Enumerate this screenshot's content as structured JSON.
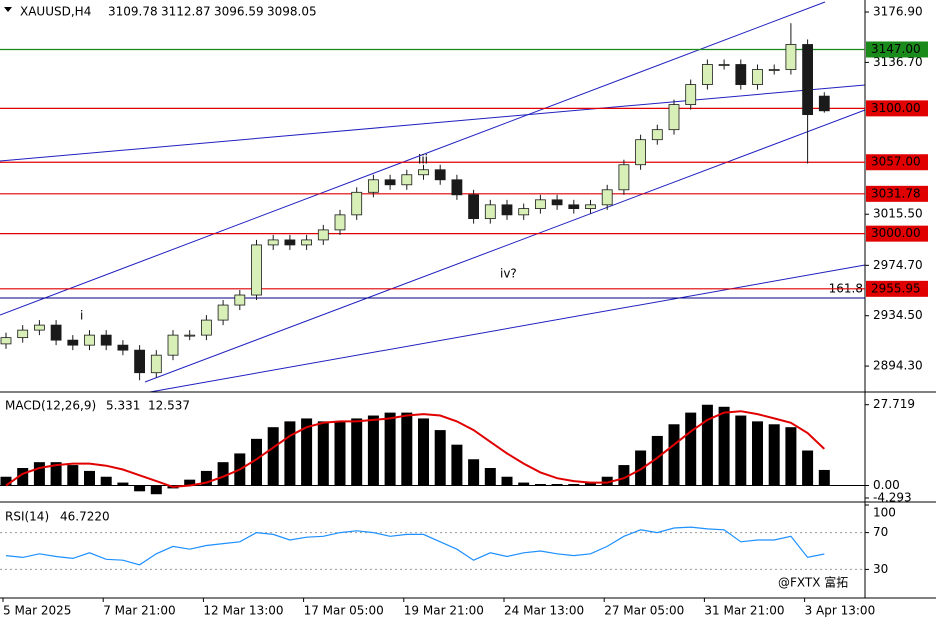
{
  "chart_data": [
    {
      "type": "candlestick",
      "title": "XAUUSD,H4",
      "header_values": [
        3109.78,
        3112.87,
        3096.59,
        3098.05
      ],
      "categories": [
        "5 Mar 2025",
        null,
        null,
        null,
        null,
        null,
        "7 Mar 21:00",
        null,
        null,
        null,
        null,
        null,
        "12 Mar 13:00",
        null,
        null,
        null,
        null,
        null,
        "17 Mar 05:00",
        null,
        null,
        null,
        null,
        null,
        "19 Mar 21:00",
        null,
        null,
        null,
        null,
        null,
        "24 Mar 13:00",
        null,
        null,
        null,
        null,
        null,
        "27 Mar 05:00",
        null,
        null,
        null,
        null,
        null,
        "31 Mar 21:00",
        null,
        null,
        null,
        null,
        null,
        "3 Apr 13:00",
        null
      ],
      "open": [
        2912,
        2917,
        2923,
        2927,
        2915,
        2911,
        2919,
        2911,
        2907,
        2889,
        2903,
        2919,
        2919,
        2931,
        2943,
        2951,
        2991,
        2995,
        2991,
        2995,
        3003,
        3015,
        3033,
        3043,
        3039,
        3047,
        3051,
        3043,
        3031,
        3012,
        3023,
        3015,
        3020,
        3027,
        3023,
        3020,
        3023,
        3035,
        3055,
        3075,
        3083,
        3103,
        3119,
        3135,
        3135,
        3119,
        3131,
        3131,
        3151,
        3109.78
      ],
      "high": [
        2921,
        2927,
        2931,
        2931,
        2919,
        2923,
        2923,
        2915,
        2911,
        2907,
        2923,
        2923,
        2935,
        2947,
        2955,
        2995,
        2999,
        2999,
        2999,
        3007,
        3019,
        3037,
        3047,
        3047,
        3051,
        3055,
        3055,
        3047,
        3035,
        3027,
        3027,
        3024,
        3031,
        3031,
        3027,
        3027,
        3039,
        3059,
        3079,
        3087,
        3107,
        3123,
        3139,
        3139,
        3139,
        3135,
        3135,
        3168,
        3155,
        3112.87
      ],
      "low": [
        2908,
        2913,
        2919,
        2911,
        2907,
        2907,
        2907,
        2903,
        2883,
        2885,
        2899,
        2915,
        2915,
        2927,
        2939,
        2947,
        2987,
        2987,
        2987,
        2991,
        2999,
        3011,
        3029,
        3035,
        3035,
        3043,
        3039,
        3027,
        3008,
        3008,
        3011,
        3011,
        3016,
        3019,
        3016,
        3016,
        3019,
        3031,
        3051,
        3071,
        3079,
        3099,
        3115,
        3131,
        3115,
        3115,
        3127,
        3127,
        3056,
        3096.59
      ],
      "close": [
        2917,
        2923,
        2927,
        2915,
        2911,
        2919,
        2911,
        2907,
        2889,
        2903,
        2919,
        2919,
        2931,
        2943,
        2951,
        2991,
        2995,
        2991,
        2995,
        3003,
        3015,
        3033,
        3043,
        3039,
        3047,
        3051,
        3043,
        3031,
        3012,
        3023,
        3015,
        3020,
        3027,
        3023,
        3020,
        3023,
        3035,
        3055,
        3075,
        3083,
        3103,
        3119,
        3135,
        3135,
        3119,
        3131,
        3131,
        3151,
        3095,
        3098.05
      ],
      "up_color": "#d8efb8",
      "down_color": "#1a1a1a",
      "ylim": [
        2873.6,
        3186.5
      ],
      "yticks": [
        {
          "value": 3176.9,
          "label": "3176.90"
        },
        {
          "value": 3136.7,
          "label": "3136.70"
        },
        {
          "value": 3015.5,
          "label": "3015.50"
        },
        {
          "value": 2974.7,
          "label": "2974.70"
        },
        {
          "value": 2934.5,
          "label": "2934.50"
        },
        {
          "value": 2894.3,
          "label": "2894.30"
        }
      ],
      "levels": [
        {
          "value": 3147,
          "label": "3147.00",
          "color": "#1a8a1a"
        },
        {
          "value": 3100,
          "label": "3100.00",
          "color": "#e00000"
        },
        {
          "value": 3057,
          "label": "3057.00",
          "color": "#e00000"
        },
        {
          "value": 3031.78,
          "label": "3031.78",
          "color": "#e00000"
        },
        {
          "value": 3000,
          "label": "3000.00",
          "color": "#e00000"
        },
        {
          "value": 2955.95,
          "label": "2955.95",
          "color": "#e00000"
        }
      ],
      "fib_line": {
        "level": 161.8,
        "price": 2948.6,
        "color": "#000080"
      },
      "wave_labels": [
        "i",
        "iii",
        "iv?"
      ],
      "watermark": "@FXTX 富拓"
    },
    {
      "type": "bar",
      "series": [
        {
          "name": "MACD(12,26,9)",
          "color": "#000000",
          "current": 5.331,
          "values": [
            3,
            6,
            8,
            8,
            7,
            5,
            3,
            1,
            -2,
            -3,
            -1,
            2,
            5,
            8,
            11,
            16,
            20,
            22,
            23,
            22,
            22,
            23,
            24,
            25,
            25,
            23,
            19,
            14,
            9,
            6,
            3,
            1,
            0.5,
            0.5,
            0.5,
            1,
            3,
            7,
            12,
            17,
            21,
            25,
            27.7,
            27,
            24,
            22,
            21,
            20,
            12,
            5.331
          ]
        },
        {
          "type": "line",
          "color": "#e00000",
          "current": 12.537,
          "values": [
            0,
            4,
            6,
            7,
            7.5,
            7.5,
            6.8,
            5.5,
            3.5,
            1.5,
            -0.5,
            0,
            1,
            3,
            5.5,
            9,
            13,
            17,
            20,
            21.5,
            22,
            22,
            22.5,
            23,
            24,
            24.5,
            24,
            22,
            19,
            15,
            11,
            7.5,
            4.5,
            2.5,
            1.5,
            1,
            1,
            2.5,
            5.5,
            9.5,
            14,
            18.5,
            22.5,
            25,
            25.5,
            24.5,
            23,
            21.5,
            18,
            12.537
          ]
        }
      ],
      "ylim": [
        -4.293,
        30.7
      ],
      "yticks": [
        27.719,
        {
          "value": 0,
          "label": "0.00"
        },
        -4.293
      ]
    },
    {
      "type": "line",
      "series": [
        {
          "name": "RSI(14)",
          "color": "#1e90ff",
          "current": {
            "value": 46.722,
            "label": "46.7220"
          },
          "values": [
            45,
            43,
            47,
            44,
            42,
            48,
            41,
            40,
            35,
            47,
            55,
            52,
            56,
            58,
            60,
            70,
            68,
            62,
            65,
            66,
            70,
            72,
            70,
            66,
            68,
            68,
            60,
            52,
            40,
            48,
            44,
            48,
            50,
            47,
            45,
            47,
            55,
            66,
            73,
            70,
            75,
            76,
            74,
            73,
            60,
            62,
            62,
            66,
            43,
            46.722
          ]
        }
      ],
      "ylim": [
        0,
        100
      ],
      "yticks": [
        100,
        70,
        30
      ],
      "levels": [
        70,
        30
      ]
    }
  ]
}
